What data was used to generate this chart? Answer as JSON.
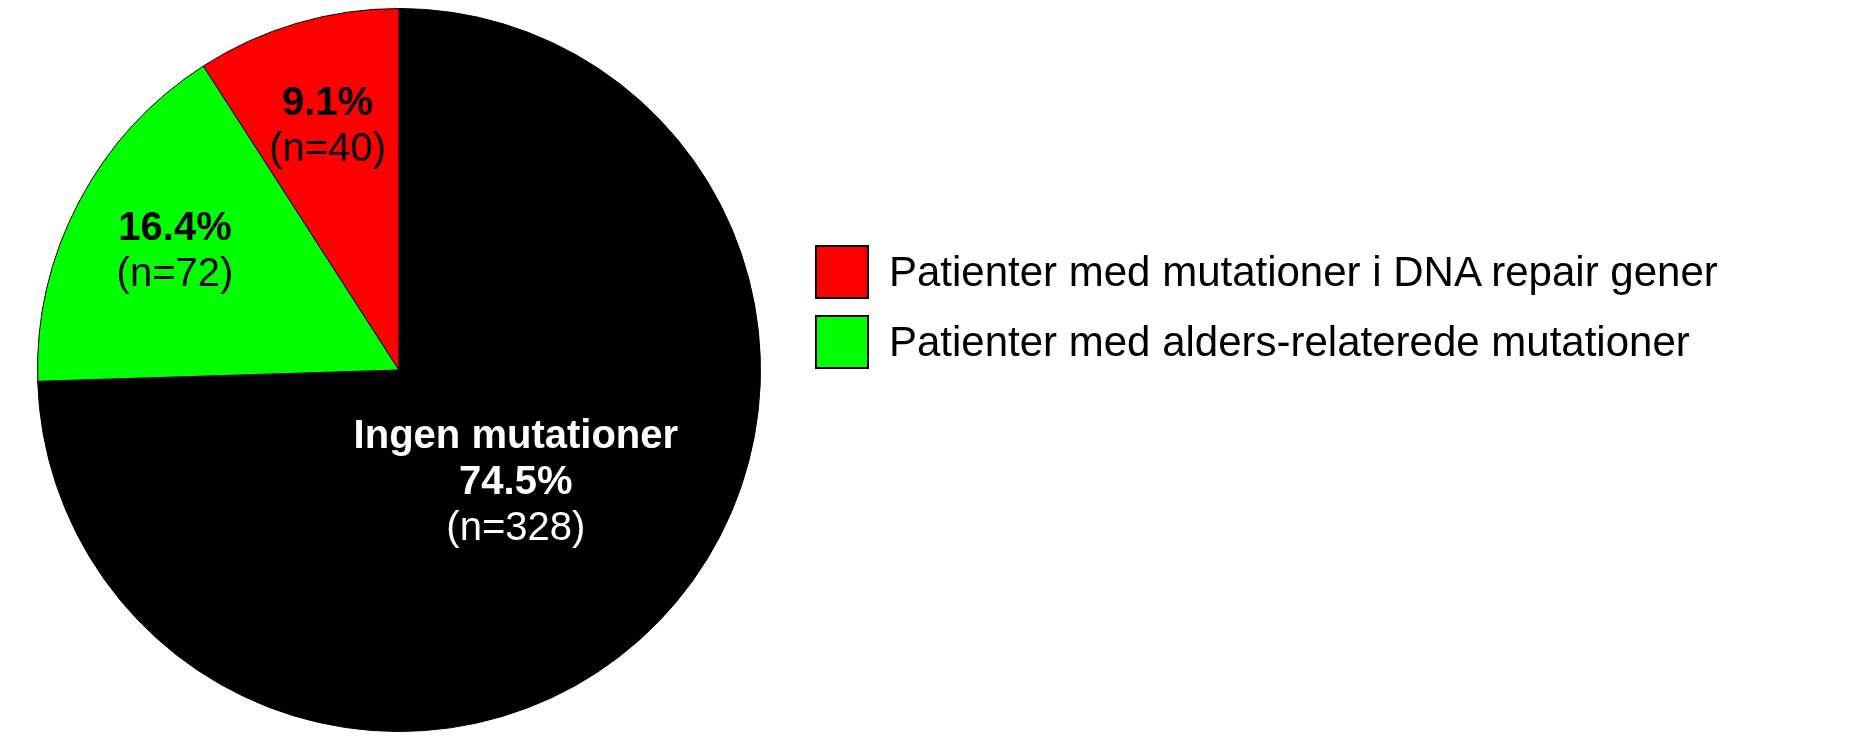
{
  "chart_data": {
    "type": "pie",
    "categories": [
      "Patienter med mutationer i DNA repair gener",
      "Patienter med alders-relaterede mutationer",
      null
    ],
    "values": [
      9.1,
      16.4,
      74.5
    ],
    "colors": [
      "#ff0000",
      "#00ff00",
      "#000000"
    ],
    "value_labels": [
      "9.1%\n(n=40)",
      "16.4%\n(n=72)",
      "Ingen mutationer\n74.5%\n(n=328)"
    ],
    "legend": "right"
  }
}
